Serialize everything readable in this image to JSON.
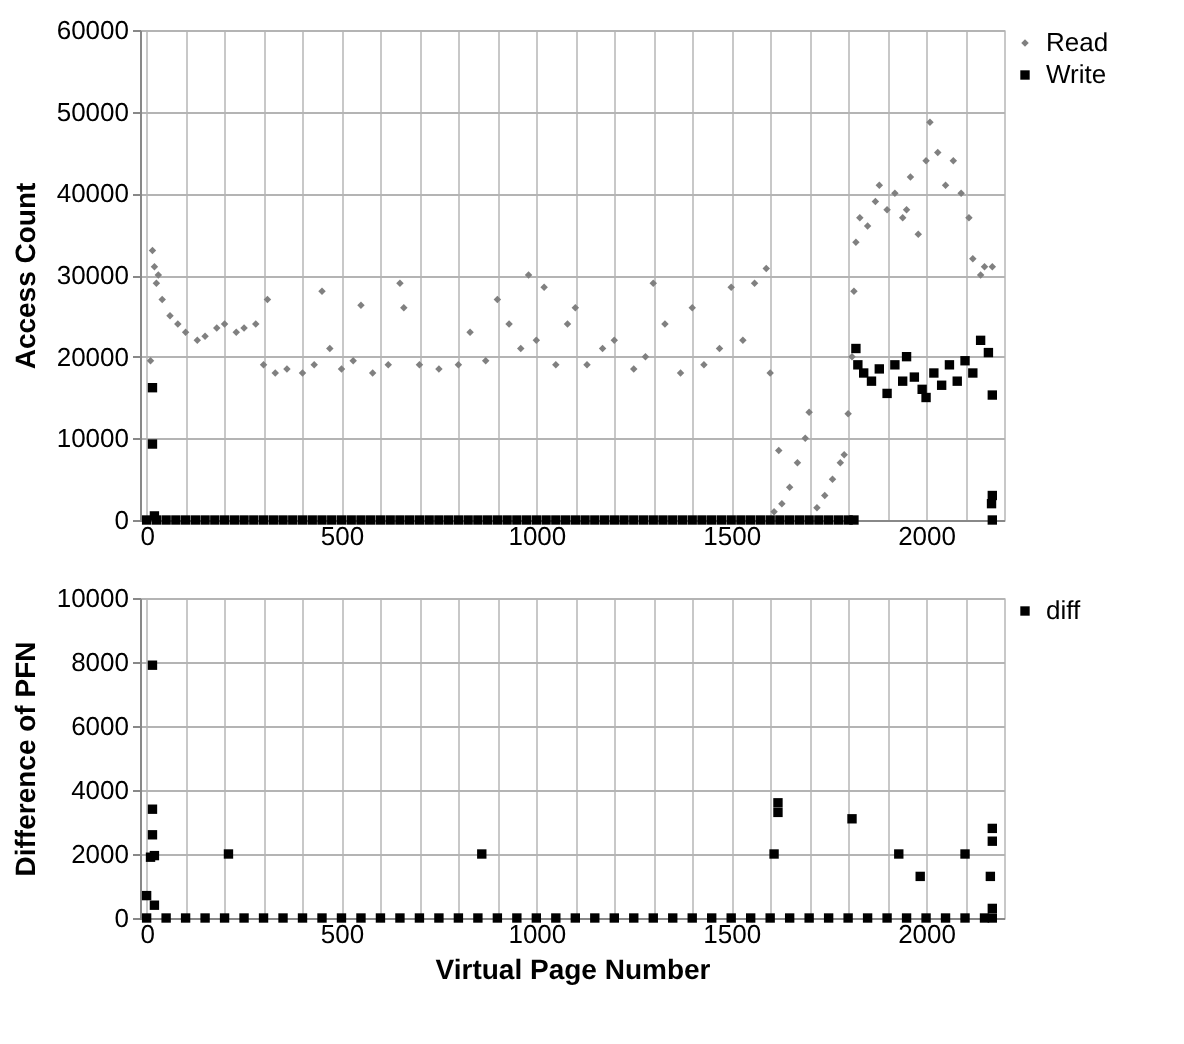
{
  "chart_data": [
    {
      "type": "scatter",
      "ylabel": "Access Count",
      "xlim": [
        -17,
        2200
      ],
      "xticks": [
        0,
        {
          "value": 100,
          "label": null
        },
        {
          "value": 200,
          "label": null
        },
        {
          "value": 300,
          "label": null
        },
        {
          "value": 400,
          "label": null
        },
        500,
        {
          "value": 600,
          "label": null
        },
        {
          "value": 700,
          "label": null
        },
        {
          "value": 800,
          "label": null
        },
        {
          "value": 900,
          "label": null
        },
        1000,
        {
          "value": 1100,
          "label": null
        },
        {
          "value": 1200,
          "label": null
        },
        {
          "value": 1300,
          "label": null
        },
        {
          "value": 1400,
          "label": null
        },
        1500,
        {
          "value": 1600,
          "label": null
        },
        {
          "value": 1700,
          "label": null
        },
        {
          "value": 1800,
          "label": null
        },
        {
          "value": 1900,
          "label": null
        },
        2000,
        {
          "value": 2100,
          "label": null
        },
        {
          "value": 2200,
          "label": null
        }
      ],
      "ylim": [
        0,
        60000
      ],
      "yticks": [
        0,
        10000,
        20000,
        30000,
        40000,
        50000,
        60000
      ],
      "grid": true,
      "legend": "right",
      "series": [
        {
          "name": "Read",
          "color": "#808080",
          "marker": "diamond",
          "x": [
            10,
            15,
            20,
            25,
            30,
            40,
            60,
            80,
            100,
            130,
            150,
            180,
            200,
            230,
            250,
            280,
            300,
            310,
            330,
            360,
            400,
            430,
            450,
            470,
            500,
            530,
            550,
            580,
            620,
            650,
            660,
            700,
            750,
            800,
            830,
            870,
            900,
            930,
            960,
            980,
            1000,
            1020,
            1050,
            1080,
            1100,
            1130,
            1170,
            1200,
            1250,
            1280,
            1300,
            1330,
            1370,
            1400,
            1430,
            1470,
            1500,
            1530,
            1560,
            1590,
            1600,
            1610,
            1622,
            1630,
            1650,
            1670,
            1690,
            1700,
            1720,
            1740,
            1760,
            1780,
            1790,
            1800,
            1810,
            1815,
            1820,
            1830,
            1850,
            1870,
            1880,
            1900,
            1920,
            1940,
            1950,
            1960,
            1980,
            2000,
            2010,
            2030,
            2050,
            2070,
            2090,
            2110,
            2120,
            2140,
            2150,
            2170
          ],
          "values": [
            19500,
            33000,
            31000,
            29000,
            30000,
            27000,
            25000,
            24000,
            23000,
            22000,
            22500,
            23500,
            24000,
            23000,
            23500,
            24000,
            19000,
            27000,
            18000,
            18500,
            18000,
            19000,
            28000,
            21000,
            18500,
            19500,
            26300,
            18000,
            19000,
            29000,
            26000,
            19000,
            18500,
            19000,
            23000,
            19500,
            27000,
            24000,
            21000,
            30000,
            22000,
            28500,
            19000,
            24000,
            26000,
            19000,
            21000,
            22000,
            18500,
            20000,
            29000,
            24000,
            18000,
            26000,
            19000,
            21000,
            28500,
            22000,
            29000,
            30800,
            18000,
            1000,
            8500,
            2000,
            4000,
            7000,
            10000,
            13200,
            1500,
            3000,
            5000,
            7000,
            8000,
            13000,
            20000,
            28000,
            34000,
            37000,
            36000,
            39000,
            41000,
            38000,
            40000,
            37000,
            38000,
            42000,
            35000,
            44000,
            48700,
            45000,
            41000,
            44000,
            40000,
            37000,
            32000,
            30000,
            31000,
            31000
          ]
        },
        {
          "name": "Write",
          "color": "#000000",
          "marker": "square",
          "x": [
            0,
            25,
            50,
            75,
            100,
            125,
            150,
            175,
            200,
            225,
            250,
            275,
            300,
            325,
            350,
            375,
            400,
            425,
            450,
            475,
            500,
            525,
            550,
            575,
            600,
            625,
            650,
            675,
            700,
            725,
            750,
            775,
            800,
            825,
            850,
            875,
            900,
            925,
            950,
            975,
            1000,
            1025,
            1050,
            1075,
            1100,
            1125,
            1150,
            1175,
            1200,
            1225,
            1250,
            1275,
            1300,
            1325,
            1350,
            1375,
            1400,
            1425,
            1450,
            1475,
            1500,
            1525,
            1550,
            1575,
            1600,
            1625,
            1650,
            1675,
            1700,
            1725,
            1750,
            1775,
            1800,
            1815,
            15,
            15,
            20,
            1820,
            1825,
            1840,
            1860,
            1880,
            1900,
            1920,
            1940,
            1950,
            1970,
            1990,
            2000,
            2020,
            2040,
            2060,
            2080,
            2100,
            2120,
            2140,
            2160,
            2170,
            2170,
            2168,
            2170
          ],
          "values": [
            0,
            0,
            0,
            0,
            0,
            0,
            0,
            0,
            0,
            0,
            0,
            0,
            0,
            0,
            0,
            0,
            0,
            0,
            0,
            0,
            0,
            0,
            0,
            0,
            0,
            0,
            0,
            0,
            0,
            0,
            0,
            0,
            0,
            0,
            0,
            0,
            0,
            0,
            0,
            0,
            0,
            0,
            0,
            0,
            0,
            0,
            0,
            0,
            0,
            0,
            0,
            0,
            0,
            0,
            0,
            0,
            0,
            0,
            0,
            0,
            0,
            0,
            0,
            0,
            0,
            0,
            0,
            0,
            0,
            0,
            0,
            0,
            0,
            0,
            16200,
            9300,
            500,
            21000,
            19000,
            18000,
            17000,
            18500,
            15500,
            19000,
            17000,
            20000,
            17500,
            16000,
            15000,
            18000,
            16500,
            19000,
            17000,
            19500,
            18000,
            22000,
            20500,
            15300,
            3000,
            2000,
            0
          ]
        }
      ]
    },
    {
      "type": "scatter",
      "xlabel": "Virtual Page Number",
      "ylabel": "Difference of PFN",
      "xlim": [
        -17,
        2200
      ],
      "xticks": [
        0,
        {
          "value": 100,
          "label": null
        },
        {
          "value": 200,
          "label": null
        },
        {
          "value": 300,
          "label": null
        },
        {
          "value": 400,
          "label": null
        },
        500,
        {
          "value": 600,
          "label": null
        },
        {
          "value": 700,
          "label": null
        },
        {
          "value": 800,
          "label": null
        },
        {
          "value": 900,
          "label": null
        },
        1000,
        {
          "value": 1100,
          "label": null
        },
        {
          "value": 1200,
          "label": null
        },
        {
          "value": 1300,
          "label": null
        },
        {
          "value": 1400,
          "label": null
        },
        1500,
        {
          "value": 1600,
          "label": null
        },
        {
          "value": 1700,
          "label": null
        },
        {
          "value": 1800,
          "label": null
        },
        {
          "value": 1900,
          "label": null
        },
        2000,
        {
          "value": 2100,
          "label": null
        },
        {
          "value": 2200,
          "label": null
        }
      ],
      "ylim": [
        0,
        10000
      ],
      "yticks": [
        0,
        2000,
        4000,
        6000,
        8000,
        10000
      ],
      "grid": true,
      "legend": "right",
      "series": [
        {
          "name": "diff",
          "color": "#000000",
          "marker": "square",
          "x": [
            0,
            50,
            100,
            150,
            200,
            250,
            300,
            350,
            400,
            450,
            500,
            550,
            600,
            650,
            700,
            750,
            800,
            850,
            900,
            950,
            1000,
            1050,
            1100,
            1150,
            1200,
            1250,
            1300,
            1350,
            1400,
            1450,
            1500,
            1550,
            1600,
            1650,
            1700,
            1750,
            1800,
            1850,
            1900,
            1950,
            2000,
            2050,
            2100,
            2150,
            2170,
            15,
            15,
            15,
            10,
            20,
            0,
            20,
            210,
            860,
            1610,
            1620,
            1620,
            1810,
            1930,
            1985,
            2100,
            2165,
            2170,
            2170,
            2170
          ],
          "values": [
            0,
            0,
            0,
            0,
            0,
            0,
            0,
            0,
            0,
            0,
            0,
            0,
            0,
            0,
            0,
            0,
            0,
            0,
            0,
            0,
            0,
            0,
            0,
            0,
            0,
            0,
            0,
            0,
            0,
            0,
            0,
            0,
            0,
            0,
            0,
            0,
            0,
            0,
            0,
            0,
            0,
            0,
            0,
            0,
            0,
            7900,
            3400,
            2600,
            1900,
            1950,
            700,
            400,
            2000,
            2000,
            2000,
            3300,
            3600,
            3100,
            2000,
            1300,
            2000,
            1300,
            2400,
            2800,
            300
          ]
        }
      ]
    }
  ]
}
